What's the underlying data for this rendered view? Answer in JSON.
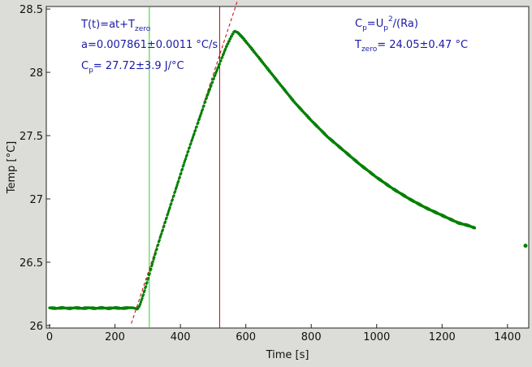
{
  "chart_data": {
    "type": "scatter",
    "xlabel": "Time [s]",
    "ylabel": "Temp [°C]",
    "xlim": [
      -10,
      1465
    ],
    "ylim": [
      25.98,
      28.52
    ],
    "xticks": [
      0,
      200,
      400,
      600,
      800,
      1000,
      1200,
      1400
    ],
    "yticks": [
      26,
      26.5,
      27,
      27.5,
      28,
      28.5
    ],
    "xtick_labels": [
      "0",
      "200",
      "400",
      "600",
      "800",
      "1000",
      "1200",
      "1400"
    ],
    "ytick_labels": [
      "26",
      "26.5",
      "27",
      "27.5",
      "28",
      "28.5"
    ],
    "grid": false,
    "series": [
      {
        "color": "#008000",
        "points": [
          [
            0,
            26.14
          ],
          [
            20,
            26.135
          ],
          [
            40,
            26.14
          ],
          [
            60,
            26.135
          ],
          [
            80,
            26.14
          ],
          [
            100,
            26.135
          ],
          [
            120,
            26.14
          ],
          [
            140,
            26.135
          ],
          [
            160,
            26.14
          ],
          [
            180,
            26.135
          ],
          [
            200,
            26.14
          ],
          [
            220,
            26.135
          ],
          [
            240,
            26.14
          ],
          [
            255,
            26.14
          ],
          [
            268,
            26.13
          ],
          [
            275,
            26.155
          ],
          [
            285,
            26.23
          ],
          [
            300,
            26.36
          ],
          [
            320,
            26.54
          ],
          [
            340,
            26.71
          ],
          [
            360,
            26.87
          ],
          [
            380,
            27.03
          ],
          [
            400,
            27.19
          ],
          [
            420,
            27.35
          ],
          [
            440,
            27.5
          ],
          [
            460,
            27.65
          ],
          [
            480,
            27.8
          ],
          [
            500,
            27.94
          ],
          [
            520,
            28.07
          ],
          [
            540,
            28.2
          ],
          [
            555,
            28.28
          ],
          [
            565,
            28.325
          ],
          [
            575,
            28.315
          ],
          [
            590,
            28.275
          ],
          [
            620,
            28.18
          ],
          [
            660,
            28.05
          ],
          [
            700,
            27.92
          ],
          [
            750,
            27.76
          ],
          [
            800,
            27.62
          ],
          [
            850,
            27.49
          ],
          [
            900,
            27.38
          ],
          [
            950,
            27.27
          ],
          [
            1000,
            27.17
          ],
          [
            1050,
            27.08
          ],
          [
            1100,
            27.0
          ],
          [
            1150,
            26.93
          ],
          [
            1200,
            26.87
          ],
          [
            1250,
            26.81
          ],
          [
            1280,
            26.79
          ],
          [
            1300,
            26.77
          ]
        ]
      },
      {
        "color": "#008000",
        "points": [
          [
            1455,
            26.63
          ]
        ]
      }
    ],
    "fit_line": {
      "slope": 0.007861,
      "intercept": 24.05,
      "x_range": [
        250,
        575
      ],
      "color": "#cc0000",
      "style": "dashed"
    },
    "vlines": [
      {
        "x": 305,
        "color": "#33cc33"
      },
      {
        "x": 520,
        "color": "#cc0000"
      }
    ],
    "annotations_left": {
      "formula_main": "T(t)=at+T",
      "formula_sub": "zero",
      "slope_text": "a=0.007861±0.0011 °C/s",
      "cp_main": "C",
      "cp_sub": "p",
      "cp_rest": "= 27.72±3.9 J/°C"
    },
    "annotations_right": {
      "cp_main": "C",
      "cp_sub": "p",
      "cp_eq": "=U",
      "cp_sub2": "p",
      "cp_sup": "2",
      "cp_rest": "/(Ra)",
      "tzero_main": "T",
      "tzero_sub": "zero",
      "tzero_rest": "= 24.05±0.47 °C"
    },
    "colors": {
      "frame_bg": "#dcdcd8",
      "plot_bg": "#ffffff",
      "annotation": "#1a1aa6"
    }
  }
}
